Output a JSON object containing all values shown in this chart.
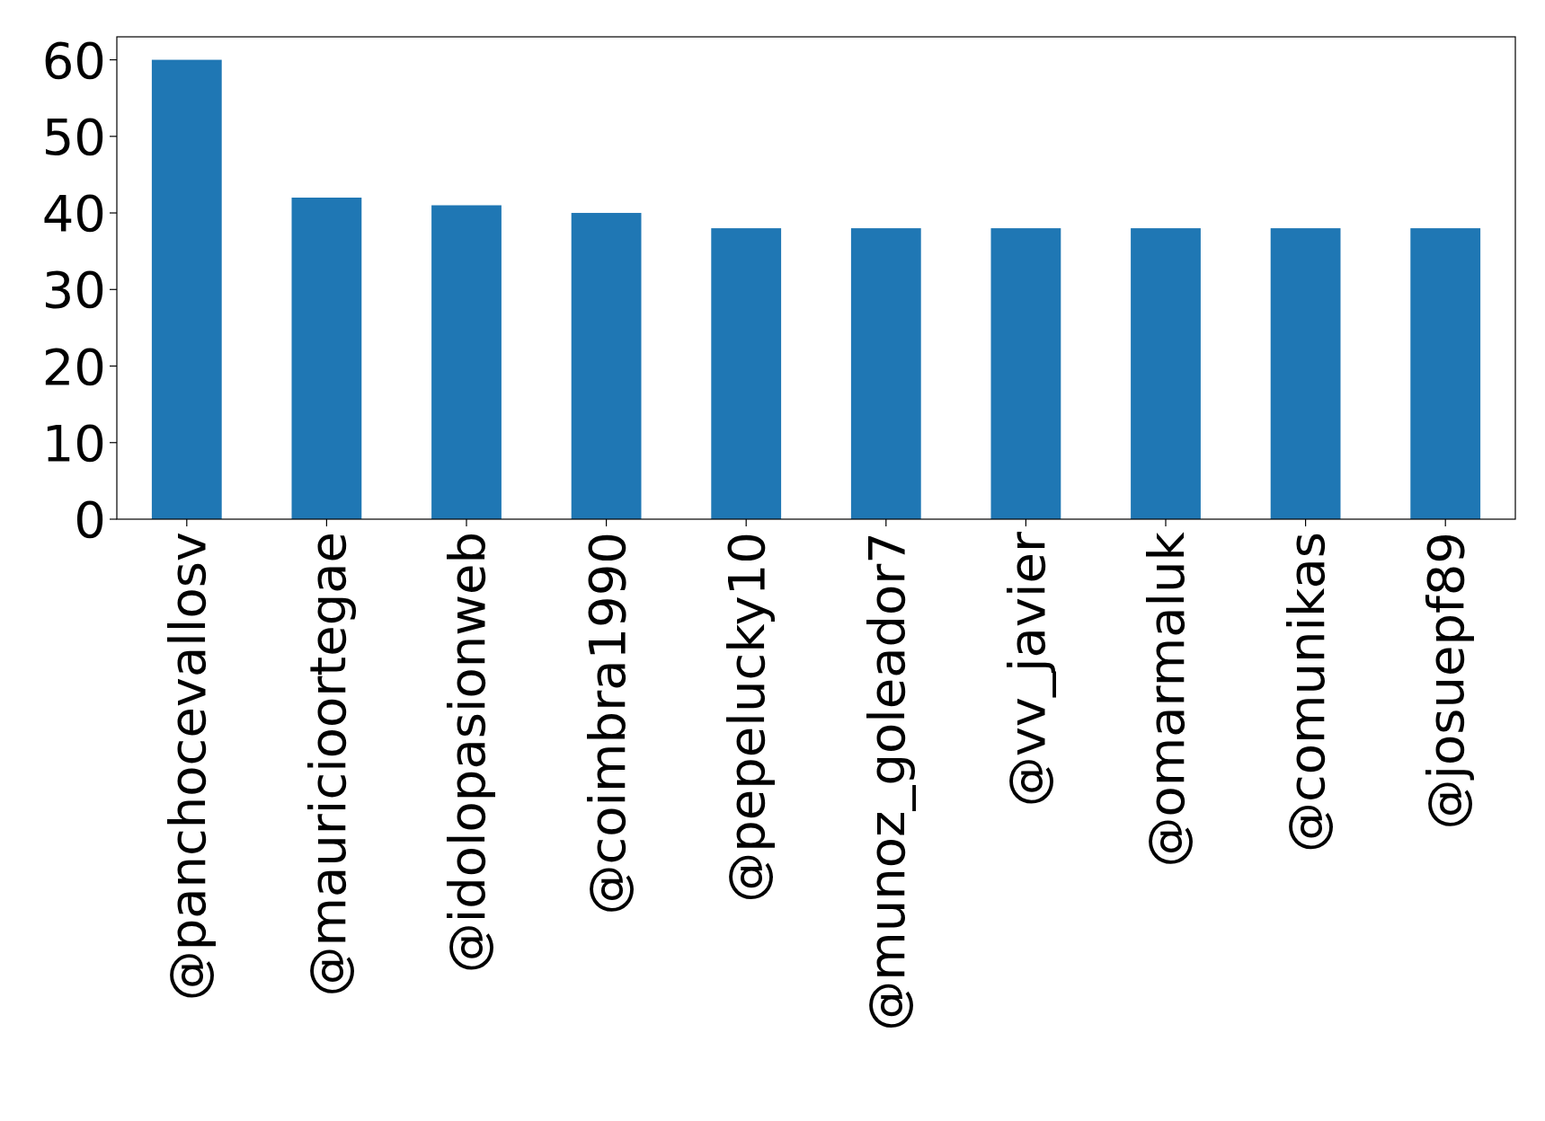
{
  "chart_data": {
    "type": "bar",
    "categories": [
      "@panchocevallosv",
      "@mauricioortegae",
      "@idolopasionweb",
      "@coimbra1990",
      "@pepelucky10",
      "@munoz_goleador7",
      "@vv_javier",
      "@omarmaluk",
      "@comunikas",
      "@josuepf89"
    ],
    "values": [
      60,
      42,
      41,
      40,
      38,
      38,
      38,
      38,
      38,
      38
    ],
    "color": "#1f77b4",
    "ylim": [
      0,
      63
    ],
    "yticks": [
      0,
      10,
      20,
      30,
      40,
      50,
      60
    ],
    "grid": false
  }
}
